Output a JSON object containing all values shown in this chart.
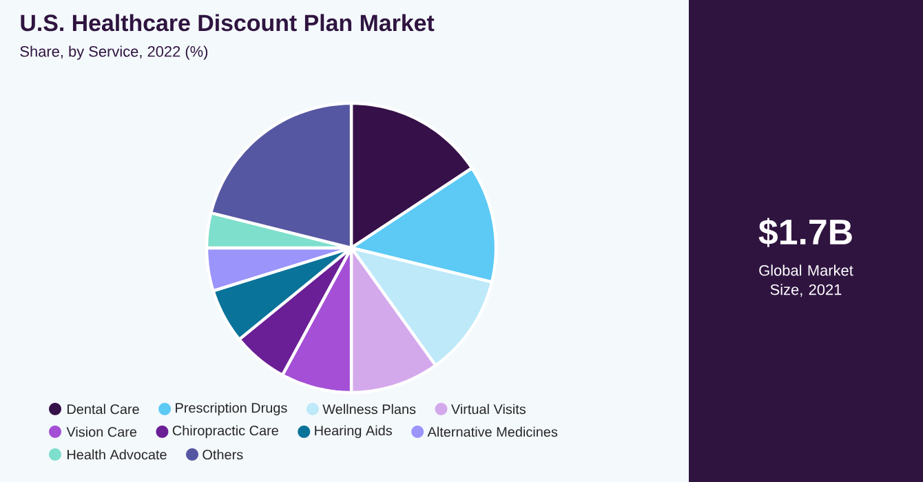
{
  "chart_data": {
    "type": "pie",
    "title": "U.S. Healthcare Discount Plan Market",
    "subtitle": "Share, by Service, 2022 (%)",
    "categories": [
      "Dental Care",
      "Prescription Drugs",
      "Wellness Plans",
      "Virtual Visits",
      "Vision Care",
      "Chiropractic Care",
      "Hearing Aids",
      "Alternative Medicines",
      "Health Advocate",
      "Others"
    ],
    "values": [
      15.7,
      13.1,
      11.3,
      9.9,
      7.9,
      6.2,
      6.1,
      4.8,
      3.9,
      21.1
    ],
    "colors": [
      "#361048",
      "#5ccaf5",
      "#bde9f9",
      "#d4a9ec",
      "#a44fd6",
      "#6a1f96",
      "#0a7399",
      "#9b94fb",
      "#7ddfcc",
      "#5657a2"
    ],
    "legend": "bottom",
    "annotations": [
      "$1.7B",
      "Global Market Size, 2021"
    ]
  }
}
